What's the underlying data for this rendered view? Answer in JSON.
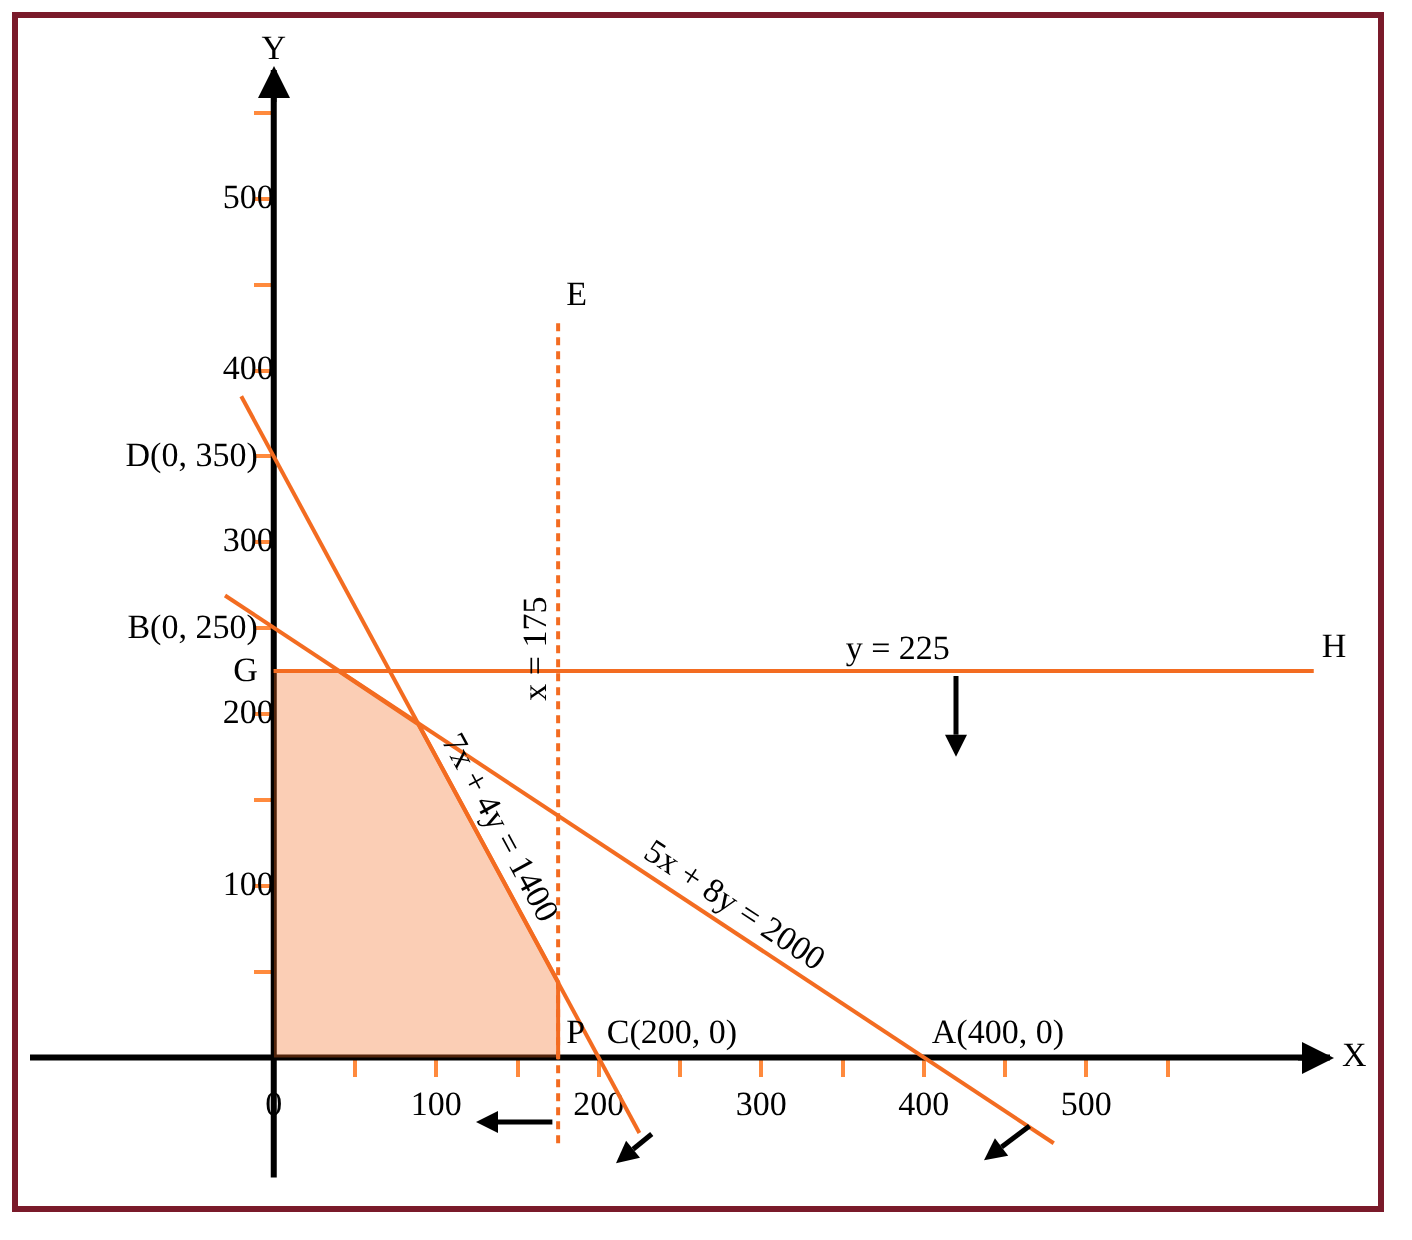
{
  "chart_data": {
    "type": "line",
    "xlabel": "X",
    "ylabel": "Y",
    "xlim": [
      -150,
      650
    ],
    "ylim": [
      -70,
      575
    ],
    "xticks": [
      0,
      {
        "value": 50,
        "label": null
      },
      100,
      {
        "value": 150,
        "label": null
      },
      200,
      {
        "value": 250,
        "label": null
      },
      300,
      {
        "value": 350,
        "label": null
      },
      400,
      {
        "value": 450,
        "label": null
      },
      500,
      {
        "value": 550,
        "label": null
      }
    ],
    "yticks": [
      {
        "value": 50,
        "label": null
      },
      100,
      {
        "value": 150,
        "label": null
      },
      200,
      {
        "value": 250,
        "label": null
      },
      300,
      {
        "value": 350,
        "label": null
      },
      400,
      {
        "value": 450,
        "label": null
      },
      500,
      {
        "value": 550,
        "label": null
      }
    ],
    "series": [
      {
        "type": "area",
        "color": "#f36c21",
        "x": [
          0,
          40,
          89,
          175,
          175
        ],
        "values": [
          225,
          225,
          194,
          44,
          0
        ]
      },
      {
        "name": "7x + 4y = 1400",
        "color": "#f36c21",
        "x": [
          -20,
          225
        ],
        "values": [
          385,
          -44
        ]
      },
      {
        "name": "5x + 8y = 2000",
        "color": "#f36c21",
        "x": [
          -30,
          480
        ],
        "values": [
          269,
          -50
        ]
      },
      {
        "name": "x = 175",
        "color": "#f36c21",
        "line_style": "dashed",
        "x": [
          175,
          175
        ],
        "values": [
          -50,
          430
        ]
      },
      {
        "name": "y = 225",
        "color": "#f36c21",
        "x": [
          0,
          640
        ],
        "values": [
          225,
          225
        ]
      }
    ],
    "annotations": [
      {
        "text": "D(0, 350)",
        "x": 0,
        "y": 350
      },
      {
        "text": "B(0, 250)",
        "x": 0,
        "y": 250
      },
      {
        "text": "G",
        "x": 0,
        "y": 225
      },
      {
        "text": "C(200, 0)",
        "x": 200,
        "y": 0
      },
      {
        "text": "A(400, 0)",
        "x": 400,
        "y": 0
      },
      {
        "text": "P",
        "x": 175,
        "y": 0
      },
      {
        "text": "E",
        "x": 175,
        "y": 430
      },
      {
        "text": "H",
        "x": 640,
        "y": 225
      }
    ],
    "grid": false,
    "legend": false,
    "marker": "none",
    "line_style": "solid"
  }
}
